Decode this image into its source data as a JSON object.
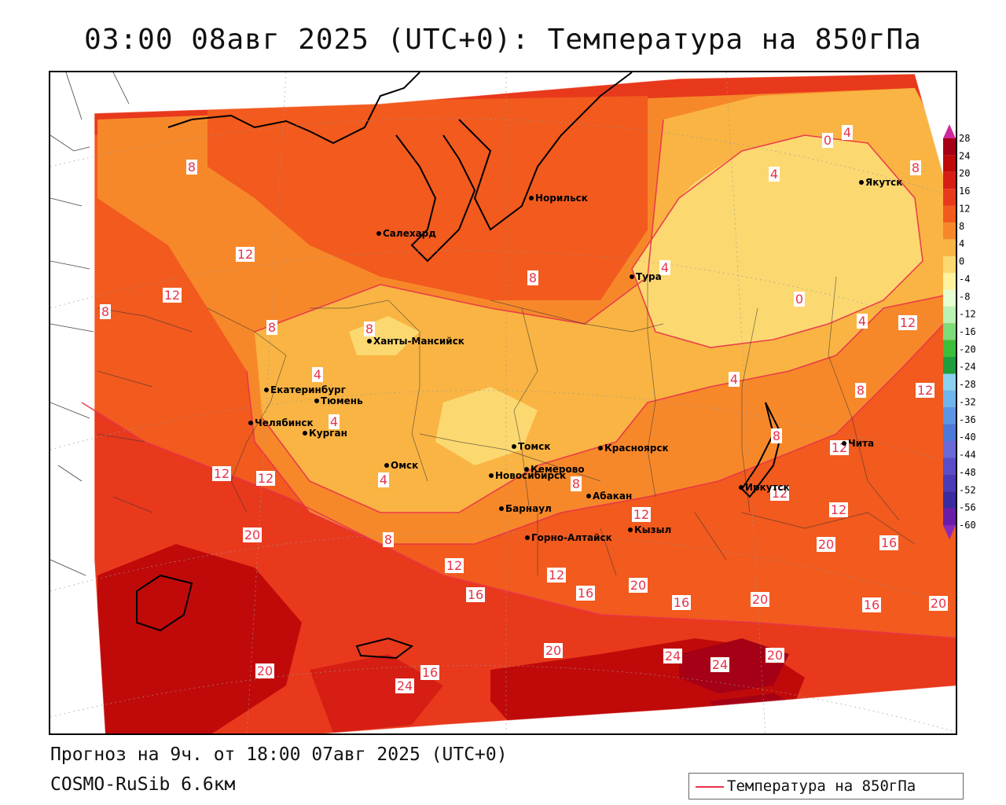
{
  "title": "03:00 08авг 2025 (UTC+0): Температура на 850гПа",
  "forecast_line": "Прогноз на 9ч. от 18:00 07авг 2025 (UTC+0)",
  "model_line": "COSMO-RuSib 6.6км",
  "legend": {
    "label": "Температура на 850гПа",
    "line_color": "#e8334a"
  },
  "colorbar": {
    "ticks": [
      "28",
      "24",
      "20",
      "16",
      "12",
      "8",
      "4",
      "0",
      "-4",
      "-8",
      "-12",
      "-16",
      "-20",
      "-24",
      "-28",
      "-32",
      "-36",
      "-40",
      "-44",
      "-48",
      "-52",
      "-56",
      "-60"
    ],
    "colors": [
      "#a50015",
      "#c00a0a",
      "#d61e14",
      "#e8391c",
      "#f25a1e",
      "#f7882a",
      "#f9b443",
      "#fcd870",
      "#fff3a0",
      "#e6ffd0",
      "#b9f2b4",
      "#7ddc7a",
      "#3cbe3c",
      "#1e9e3c",
      "#8ad2f0",
      "#6fb6ee",
      "#5a96e6",
      "#4d7ad8",
      "#6a6ad8",
      "#5a4ec8",
      "#4a3cb8",
      "#3a2ca0",
      "#6a1ea8"
    ],
    "top_arrow_color": "#cc2a9a",
    "bottom_arrow_color": "#8a2ab8"
  },
  "cities": [
    {
      "name": "Норильск"
    },
    {
      "name": "Якутск"
    },
    {
      "name": "Салехард"
    },
    {
      "name": "Тура"
    },
    {
      "name": "Ханты-Мансийск"
    },
    {
      "name": "Екатеринбург"
    },
    {
      "name": "Тюмень"
    },
    {
      "name": "Челябинск"
    },
    {
      "name": "Курган"
    },
    {
      "name": "Омск"
    },
    {
      "name": "Новосибирск"
    },
    {
      "name": "Томск"
    },
    {
      "name": "Кемерово"
    },
    {
      "name": "Красноярск"
    },
    {
      "name": "Барнаул"
    },
    {
      "name": "Абакан"
    },
    {
      "name": "Кызыл"
    },
    {
      "name": "Горно-Алтайск"
    },
    {
      "name": "Иркутск"
    },
    {
      "name": "Чита"
    }
  ],
  "isotherm_labels": [
    "8",
    "12",
    "12",
    "8",
    "8",
    "8",
    "4",
    "4",
    "4",
    "8",
    "4",
    "0",
    "4",
    "8",
    "0",
    "4",
    "12",
    "4",
    "8",
    "12",
    "4",
    "12",
    "12",
    "12",
    "8",
    "12",
    "8",
    "12",
    "12",
    "16",
    "20",
    "8",
    "12",
    "16",
    "12",
    "16",
    "20",
    "16",
    "20",
    "20",
    "16",
    "20",
    "20",
    "24",
    "24",
    "20",
    "20",
    "24",
    "16"
  ]
}
